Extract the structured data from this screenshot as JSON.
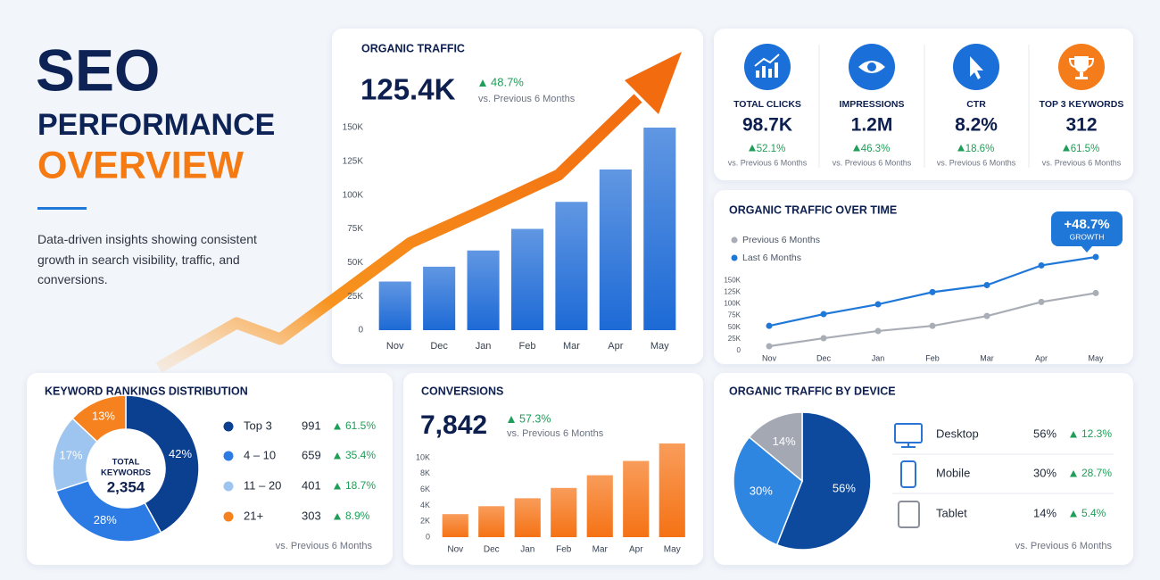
{
  "header": {
    "title": [
      "SEO",
      "PERFORMANCE",
      "OVERVIEW"
    ],
    "description": "Data-driven insights showing consistent growth in search visibility, traffic, and conversions."
  },
  "kpis": [
    {
      "label": "TOTAL CLICKS",
      "value": "98.7K",
      "change": "52.1%",
      "note": "vs. Previous 6 Months"
    },
    {
      "label": "IMPRESSIONS",
      "value": "1.2M",
      "change": "46.3%",
      "note": "vs. Previous 6 Months"
    },
    {
      "label": "CTR",
      "value": "8.2%",
      "change": "18.6%",
      "note": "vs. Previous 6 Months"
    },
    {
      "label": "TOP 3 KEYWORDS",
      "value": "312",
      "change": "61.5%",
      "note": "vs. Previous 6 Months"
    }
  ],
  "chart_data": [
    {
      "type": "bar",
      "title": "ORGANIC TRAFFIC",
      "headline": "125.4K",
      "change": "48.7%",
      "note": "vs. Previous 6 Months",
      "categories": [
        "Nov",
        "Dec",
        "Jan",
        "Feb",
        "Mar",
        "Apr",
        "May"
      ],
      "values": [
        36000,
        47000,
        59000,
        75000,
        95000,
        119000,
        150000
      ],
      "color": "#1d6ad6",
      "ylim": [
        0,
        150000
      ],
      "yticks": [
        0,
        {
          "value": 25000,
          "label": "25K"
        },
        {
          "value": 50000,
          "label": "50K"
        },
        {
          "value": 75000,
          "label": "75K"
        },
        {
          "value": 100000,
          "label": "100K"
        },
        {
          "value": 125000,
          "label": "125K"
        },
        {
          "value": 150000,
          "label": "150K"
        }
      ]
    },
    {
      "type": "line",
      "title": "ORGANIC TRAFFIC OVER TIME",
      "annotation": {
        "text": "+48.7%",
        "label": "GROWTH"
      },
      "categories": [
        "Nov",
        "Dec",
        "Jan",
        "Feb",
        "Mar",
        "Apr",
        "May"
      ],
      "series": [
        {
          "name": "Previous 6 Months",
          "color": "#a9adb5",
          "values": [
            9500,
            26600,
            42000,
            53000,
            74000,
            104000,
            123000
          ]
        },
        {
          "name": "Last 6 Months",
          "color": "#1f78d8",
          "values": [
            53000,
            78000,
            99000,
            125000,
            140000,
            182000,
            200000
          ]
        }
      ],
      "ylim": [
        0,
        200000
      ],
      "yticks": [
        0,
        {
          "value": 25000,
          "label": "25K"
        },
        {
          "value": 50000,
          "label": "50K"
        },
        {
          "value": 75000,
          "label": "75K"
        },
        {
          "value": 100000,
          "label": "100K"
        },
        {
          "value": 125000,
          "label": "125K"
        },
        {
          "value": 150000,
          "label": "150K"
        }
      ],
      "legend": "top-left"
    },
    {
      "type": "donut",
      "title": "KEYWORD RANKINGS DISTRIBUTION",
      "center_label": [
        "TOTAL",
        "KEYWORDS"
      ],
      "total": "2,354",
      "categories": [
        "Top 3",
        "4 – 10",
        "11 – 20",
        "21+"
      ],
      "values": [
        42,
        28,
        17,
        13
      ],
      "value_labels": [
        "42%",
        "28%",
        "17%",
        "13%"
      ],
      "colors": [
        "#0b3f8f",
        "#2c7be5",
        "#9ec5ef",
        "#f5821f"
      ],
      "counts": [
        991,
        659,
        401,
        303
      ],
      "changes": [
        "61.5%",
        "35.4%",
        "18.7%",
        "8.9%"
      ],
      "note": "vs. Previous 6 Months"
    },
    {
      "type": "bar",
      "title": "CONVERSIONS",
      "headline": "7,842",
      "change": "57.3%",
      "note": "vs. Previous 6 Months",
      "categories": [
        "Nov",
        "Dec",
        "Jan",
        "Feb",
        "Mar",
        "Apr",
        "May"
      ],
      "values": [
        2900,
        3900,
        4900,
        6200,
        7800,
        9600,
        11800
      ],
      "color": "#f57214",
      "ylim": [
        0,
        12000
      ],
      "yticks": [
        0,
        {
          "value": 2000,
          "label": "2K"
        },
        {
          "value": 4000,
          "label": "4K"
        },
        {
          "value": 6000,
          "label": "6K"
        },
        {
          "value": 8000,
          "label": "8K"
        },
        {
          "value": 10000,
          "label": "10K"
        }
      ]
    },
    {
      "type": "pie",
      "title": "ORGANIC TRAFFIC BY DEVICE",
      "categories": [
        "Desktop",
        "Mobile",
        "Tablet"
      ],
      "values": [
        56,
        30,
        14
      ],
      "value_labels": [
        "56%",
        "30%",
        "14%"
      ],
      "colors": [
        "#0d4a9e",
        "#2f86e0",
        "#a3a8b3"
      ],
      "changes": [
        "12.3%",
        "28.7%",
        "5.4%"
      ],
      "note": "vs. Previous 6 Months"
    }
  ]
}
